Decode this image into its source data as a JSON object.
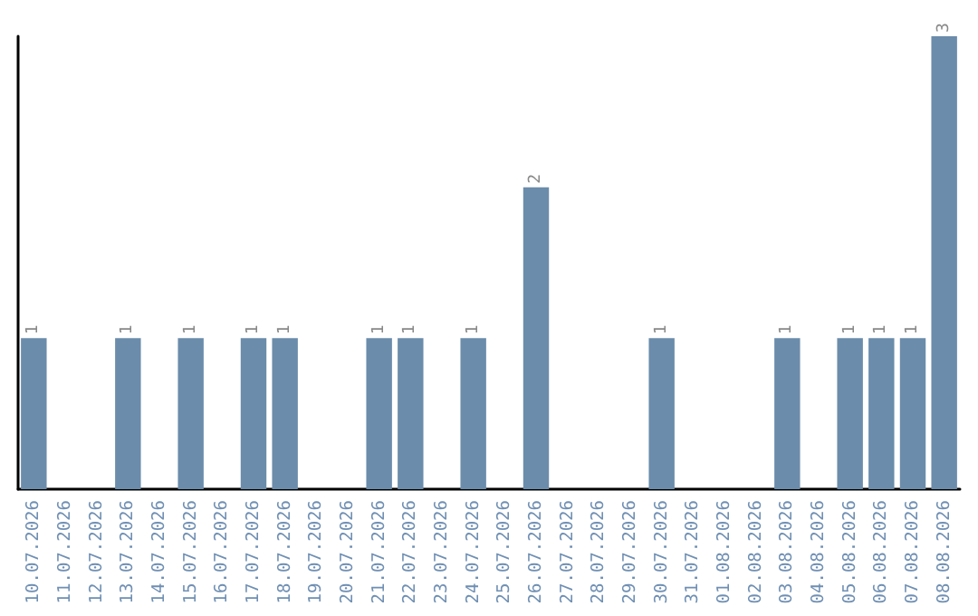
{
  "chart_data": {
    "type": "bar",
    "categories": [
      "10.07.2026",
      "11.07.2026",
      "12.07.2026",
      "13.07.2026",
      "14.07.2026",
      "15.07.2026",
      "16.07.2026",
      "17.07.2026",
      "18.07.2026",
      "19.07.2026",
      "20.07.2026",
      "21.07.2026",
      "22.07.2026",
      "23.07.2026",
      "24.07.2026",
      "25.07.2026",
      "26.07.2026",
      "27.07.2026",
      "28.07.2026",
      "29.07.2026",
      "30.07.2026",
      "31.07.2026",
      "01.08.2026",
      "02.08.2026",
      "03.08.2026",
      "04.08.2026",
      "05.08.2026",
      "06.08.2026",
      "07.08.2026",
      "08.08.2026"
    ],
    "values": [
      1,
      0,
      0,
      1,
      0,
      1,
      0,
      1,
      1,
      0,
      0,
      1,
      1,
      0,
      1,
      0,
      2,
      0,
      0,
      0,
      1,
      0,
      0,
      0,
      1,
      0,
      1,
      1,
      1,
      3
    ],
    "value_labels": [
      "1",
      null,
      null,
      "1",
      null,
      "1",
      null,
      "1",
      "1",
      null,
      null,
      "1",
      "1",
      null,
      "1",
      null,
      "2",
      null,
      null,
      null,
      "1",
      null,
      null,
      null,
      "1",
      null,
      "1",
      "1",
      "1",
      "3"
    ],
    "color": "#6b8cab"
  }
}
